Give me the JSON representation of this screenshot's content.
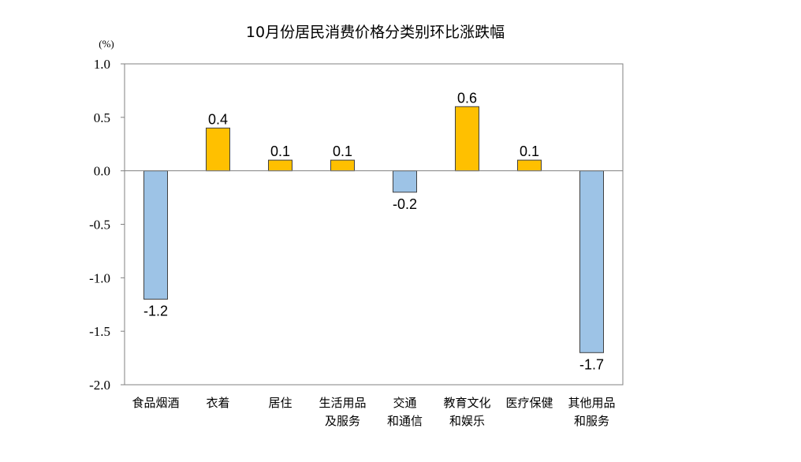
{
  "chart_data": {
    "type": "bar",
    "title": "10月份居民消费价格分类别环比涨跌幅",
    "ylabel": "(%)",
    "xlabel": "",
    "ylim": [
      -2.0,
      1.0
    ],
    "yticks": [
      "1.0",
      "0.5",
      "0.0",
      "-0.5",
      "-1.0",
      "-1.5",
      "-2.0"
    ],
    "grid": false,
    "legend": "none",
    "categories": [
      [
        "食品烟酒"
      ],
      [
        "衣着"
      ],
      [
        "居住"
      ],
      [
        "生活用品",
        "及服务"
      ],
      [
        "交通",
        "和通信"
      ],
      [
        "教育文化",
        "和娱乐"
      ],
      [
        "医疗保健"
      ],
      [
        "其他用品",
        "和服务"
      ]
    ],
    "values": [
      -1.2,
      0.4,
      0.1,
      0.1,
      -0.2,
      0.6,
      0.1,
      -1.7
    ],
    "value_labels": [
      "-1.2",
      "0.4",
      "0.1",
      "0.1",
      "-0.2",
      "0.6",
      "0.1",
      "-1.7"
    ],
    "colors": {
      "positive": "#FFC000",
      "negative": "#9DC3E6",
      "bar_border": "#404040",
      "axis": "#808080"
    }
  }
}
